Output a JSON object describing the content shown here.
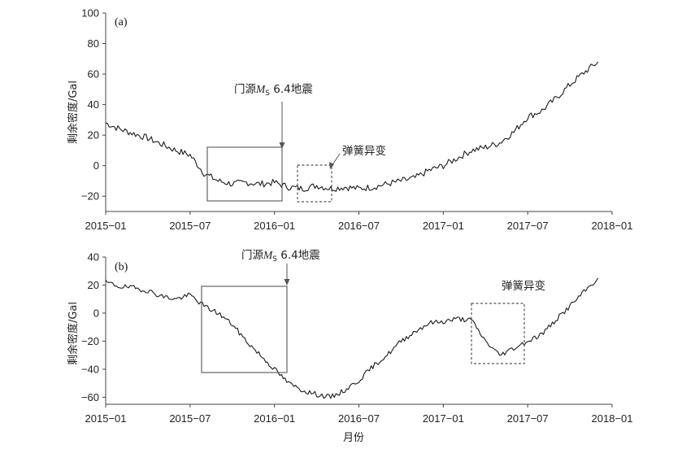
{
  "chart_data": [
    {
      "type": "line",
      "panel_label": "(a)",
      "ylabel": "剩余密度/Gal",
      "xlabel": "",
      "ylim": [
        -30,
        100
      ],
      "yticks": [
        100,
        80,
        60,
        40,
        20,
        0,
        -20
      ],
      "xticks": [
        "2015-01",
        "2015-07",
        "2016-01",
        "2016-07",
        "2017-01",
        "2017-07",
        "2018-01"
      ],
      "grid": false,
      "series": [
        {
          "x": [
            "2015-01",
            "2015-02",
            "2015-03",
            "2015-04",
            "2015-05",
            "2015-06",
            "2015-07",
            "2015-08",
            "2015-09",
            "2015-10",
            "2015-11",
            "2015-12",
            "2016-01",
            "2016-02",
            "2016-03",
            "2016-04",
            "2016-05",
            "2016-06",
            "2016-07",
            "2016-08",
            "2016-09",
            "2016-10",
            "2016-11",
            "2016-12",
            "2017-01",
            "2017-02",
            "2017-03",
            "2017-04",
            "2017-05",
            "2017-06",
            "2017-07",
            "2017-08",
            "2017-09",
            "2017-10",
            "2017-11",
            "2017-12"
          ],
          "values": [
            28,
            24,
            21,
            18,
            14,
            10,
            7,
            -5,
            -10,
            -12,
            -11,
            -12,
            -11,
            -14,
            -15,
            -13,
            -15,
            -14,
            -15,
            -14,
            -12,
            -10,
            -8,
            -3,
            0,
            5,
            10,
            12,
            15,
            22,
            32,
            36,
            44,
            53,
            61,
            68
          ]
        }
      ],
      "annotations": [
        {
          "text_main": "门源",
          "text_italic": "M",
          "text_sub": "S",
          "text_tail": " 6.4地震"
        },
        {
          "text": "弹簧异变"
        }
      ]
    },
    {
      "type": "line",
      "panel_label": "(b)",
      "ylabel": "剩余密度/Gal",
      "xlabel": "月份",
      "ylim": [
        -65,
        40
      ],
      "yticks": [
        40,
        20,
        0,
        -20,
        -40,
        -60
      ],
      "xticks": [
        "2015-01",
        "2015-07",
        "2016-01",
        "2016-07",
        "2017-01",
        "2017-07",
        "2018-01"
      ],
      "grid": false,
      "series": [
        {
          "x": [
            "2015-01",
            "2015-02",
            "2015-03",
            "2015-04",
            "2015-05",
            "2015-06",
            "2015-07",
            "2015-08",
            "2015-09",
            "2015-10",
            "2015-11",
            "2015-12",
            "2016-01",
            "2016-02",
            "2016-03",
            "2016-04",
            "2016-05",
            "2016-06",
            "2016-07",
            "2016-08",
            "2016-09",
            "2016-10",
            "2016-11",
            "2016-12",
            "2017-01",
            "2017-02",
            "2017-03",
            "2017-04",
            "2017-05",
            "2017-06",
            "2017-07",
            "2017-08",
            "2017-09",
            "2017-10",
            "2017-11",
            "2017-12"
          ],
          "values": [
            22,
            19,
            18,
            16,
            12,
            10,
            13,
            5,
            0,
            -8,
            -20,
            -30,
            -40,
            -50,
            -55,
            -58,
            -60,
            -55,
            -48,
            -38,
            -30,
            -20,
            -13,
            -7,
            -6,
            -4,
            -5,
            -20,
            -30,
            -25,
            -20,
            -15,
            -5,
            5,
            15,
            25
          ]
        }
      ],
      "annotations": [
        {
          "text_main": "门源",
          "text_italic": "M",
          "text_sub": "S",
          "text_tail": " 6.4地震"
        },
        {
          "text": "弹簧异变"
        }
      ]
    }
  ]
}
